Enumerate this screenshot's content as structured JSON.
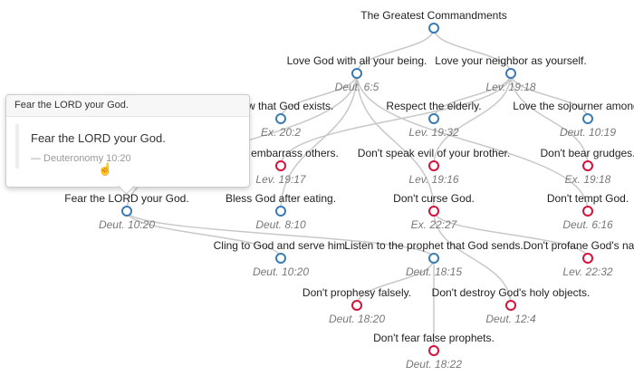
{
  "colors": {
    "positive": "#3a7ab5",
    "negative": "#d6123a",
    "edge": "#c8c8c8"
  },
  "nodes": [
    {
      "id": "root",
      "label": "The Greatest Commandments",
      "ref": "",
      "type": "positive",
      "parent": null
    },
    {
      "id": "lovegod",
      "label": "Love God with all your being.",
      "ref": "Deut. 6:5",
      "type": "positive",
      "parent": "root"
    },
    {
      "id": "loveneighbor",
      "label": "Love your neighbor as yourself.",
      "ref": "Lev. 19:18",
      "type": "positive",
      "parent": "root"
    },
    {
      "id": "know",
      "label": "Know that God exists.",
      "ref": "Ex. 20:2",
      "type": "positive",
      "parent": "lovegod"
    },
    {
      "id": "respect",
      "label": "Respect the elderly.",
      "ref": "Lev. 19:32",
      "type": "positive",
      "parent": "loveneighbor"
    },
    {
      "id": "sojourner",
      "label": "Love the sojourner among you.",
      "ref": "Deut. 10:19",
      "type": "positive",
      "parent": "loveneighbor"
    },
    {
      "id": "embarrass",
      "label": "Don't embarrass others.",
      "ref": "Lev. 19:17",
      "type": "negative",
      "parent": "loveneighbor"
    },
    {
      "id": "speakevil",
      "label": "Don't speak evil of your brother.",
      "ref": "Lev. 19:16",
      "type": "negative",
      "parent": "loveneighbor"
    },
    {
      "id": "grudges",
      "label": "Don't bear grudges.",
      "ref": "Ex. 19:18",
      "type": "negative",
      "parent": "loveneighbor"
    },
    {
      "id": "fear",
      "label": "Fear the LORD your God.",
      "ref": "Deut. 10:20",
      "type": "positive",
      "parent": "lovegod"
    },
    {
      "id": "bless",
      "label": "Bless God after eating.",
      "ref": "Deut. 8:10",
      "type": "positive",
      "parent": "lovegod"
    },
    {
      "id": "curse",
      "label": "Don't curse God.",
      "ref": "Ex. 22:27",
      "type": "negative",
      "parent": "lovegod"
    },
    {
      "id": "tempt",
      "label": "Don't tempt God.",
      "ref": "Deut. 6:16",
      "type": "negative",
      "parent": "lovegod"
    },
    {
      "id": "cling",
      "label": "Cling to God and serve him.",
      "ref": "Deut. 10:20",
      "type": "positive",
      "parent": "fear"
    },
    {
      "id": "listen",
      "label": "Listen to the prophet that God sends.",
      "ref": "Deut. 18:15",
      "type": "positive",
      "parent": "fear"
    },
    {
      "id": "profane",
      "label": "Don't profane God's name.",
      "ref": "Lev. 22:32",
      "type": "negative",
      "parent": "curse"
    },
    {
      "id": "prophesy",
      "label": "Don't prophesy falsely.",
      "ref": "Deut. 18:20",
      "type": "negative",
      "parent": "listen"
    },
    {
      "id": "destroy",
      "label": "Don't destroy God's holy objects.",
      "ref": "Deut. 12:4",
      "type": "negative",
      "parent": "curse"
    },
    {
      "id": "falseprophets",
      "label": "Don't fear false prophets.",
      "ref": "Deut. 18:22",
      "type": "negative",
      "parent": "listen"
    }
  ],
  "tooltip": {
    "header": "Fear the LORD your God.",
    "text": "Fear the LORD your God.",
    "reference": "— Deuteronomy 10:20",
    "cursor_icon": "hand-pointer-icon"
  }
}
